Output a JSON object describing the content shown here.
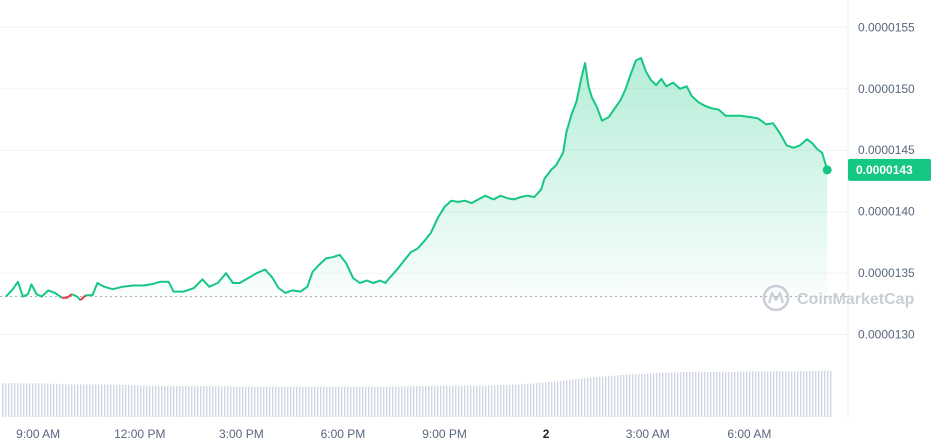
{
  "chart_data": {
    "type": "area",
    "y_ticks": [
      "0.0000155",
      "0.0000150",
      "0.0000145",
      "0.0000140",
      "0.0000135",
      "0.0000130"
    ],
    "y_tick_values": [
      1.55e-05,
      1.5e-05,
      1.45e-05,
      1.4e-05,
      1.35e-05,
      1.3e-05
    ],
    "x_ticks": [
      "9:00 AM",
      "12:00 PM",
      "3:00 PM",
      "6:00 PM",
      "9:00 PM",
      "2",
      "3:00 AM",
      "6:00 AM"
    ],
    "x_tick_hours": [
      9,
      12,
      15,
      18,
      21,
      24,
      27,
      30
    ],
    "bold_tick": "2",
    "current_price_label": "0.0000143",
    "open_price": 1.331e-05,
    "ylim": [
      1.255e-05,
      1.56e-05
    ],
    "xlim_hours": [
      8.05,
      32.5
    ],
    "colors": {
      "up": "#16c784",
      "down": "#ea3943",
      "volume": "#cfd6e4"
    },
    "watermark": "CoinMarketCap",
    "series": [
      {
        "values": [
          [
            8.05,
            1.331e-05
          ],
          [
            8.25,
            1.337e-05
          ],
          [
            8.4,
            1.343e-05
          ],
          [
            8.55,
            1.331e-05
          ],
          [
            8.7,
            1.333e-05
          ],
          [
            8.8,
            1.341e-05
          ],
          [
            8.95,
            1.333e-05
          ],
          [
            9.1,
            1.331e-05
          ],
          [
            9.3,
            1.336e-05
          ],
          [
            9.5,
            1.334e-05
          ],
          [
            9.7,
            1.33e-05
          ],
          [
            9.85,
            1.33e-05
          ],
          [
            10.0,
            1.333e-05
          ],
          [
            10.15,
            1.331e-05
          ],
          [
            10.25,
            1.328e-05
          ],
          [
            10.4,
            1.332e-05
          ],
          [
            10.6,
            1.332e-05
          ],
          [
            10.75,
            1.342e-05
          ],
          [
            10.95,
            1.339e-05
          ],
          [
            11.2,
            1.337e-05
          ],
          [
            11.5,
            1.339e-05
          ],
          [
            11.8,
            1.34e-05
          ],
          [
            12.1,
            1.34e-05
          ],
          [
            12.35,
            1.341e-05
          ],
          [
            12.6,
            1.343e-05
          ],
          [
            12.85,
            1.343e-05
          ],
          [
            13.0,
            1.335e-05
          ],
          [
            13.3,
            1.335e-05
          ],
          [
            13.6,
            1.338e-05
          ],
          [
            13.85,
            1.345e-05
          ],
          [
            14.05,
            1.339e-05
          ],
          [
            14.3,
            1.342e-05
          ],
          [
            14.55,
            1.35e-05
          ],
          [
            14.75,
            1.342e-05
          ],
          [
            14.95,
            1.342e-05
          ],
          [
            15.2,
            1.346e-05
          ],
          [
            15.45,
            1.35e-05
          ],
          [
            15.7,
            1.353e-05
          ],
          [
            15.9,
            1.347e-05
          ],
          [
            16.1,
            1.338e-05
          ],
          [
            16.3,
            1.334e-05
          ],
          [
            16.5,
            1.336e-05
          ],
          [
            16.75,
            1.335e-05
          ],
          [
            16.95,
            1.339e-05
          ],
          [
            17.1,
            1.351e-05
          ],
          [
            17.3,
            1.357e-05
          ],
          [
            17.5,
            1.362e-05
          ],
          [
            17.7,
            1.363e-05
          ],
          [
            17.9,
            1.365e-05
          ],
          [
            18.1,
            1.358e-05
          ],
          [
            18.3,
            1.346e-05
          ],
          [
            18.5,
            1.342e-05
          ],
          [
            18.7,
            1.344e-05
          ],
          [
            18.9,
            1.342e-05
          ],
          [
            19.1,
            1.344e-05
          ],
          [
            19.25,
            1.342e-05
          ],
          [
            19.4,
            1.347e-05
          ],
          [
            19.6,
            1.353e-05
          ],
          [
            19.8,
            1.36e-05
          ],
          [
            20.0,
            1.367e-05
          ],
          [
            20.2,
            1.37e-05
          ],
          [
            20.4,
            1.376e-05
          ],
          [
            20.6,
            1.383e-05
          ],
          [
            20.8,
            1.395e-05
          ],
          [
            21.0,
            1.404e-05
          ],
          [
            21.2,
            1.409e-05
          ],
          [
            21.4,
            1.408e-05
          ],
          [
            21.6,
            1.409e-05
          ],
          [
            21.8,
            1.407e-05
          ],
          [
            22.0,
            1.41e-05
          ],
          [
            22.2,
            1.413e-05
          ],
          [
            22.45,
            1.41e-05
          ],
          [
            22.65,
            1.413e-05
          ],
          [
            22.85,
            1.411e-05
          ],
          [
            23.05,
            1.41e-05
          ],
          [
            23.25,
            1.412e-05
          ],
          [
            23.45,
            1.413e-05
          ],
          [
            23.65,
            1.412e-05
          ],
          [
            23.85,
            1.418e-05
          ],
          [
            23.95,
            1.427e-05
          ],
          [
            24.15,
            1.434e-05
          ],
          [
            24.3,
            1.438e-05
          ],
          [
            24.5,
            1.448e-05
          ],
          [
            24.6,
            1.465e-05
          ],
          [
            24.75,
            1.479e-05
          ],
          [
            24.9,
            1.49e-05
          ],
          [
            25.05,
            1.51e-05
          ],
          [
            25.15,
            1.521e-05
          ],
          [
            25.25,
            1.502e-05
          ],
          [
            25.35,
            1.493e-05
          ],
          [
            25.5,
            1.485e-05
          ],
          [
            25.65,
            1.474e-05
          ],
          [
            25.85,
            1.477e-05
          ],
          [
            26.05,
            1.485e-05
          ],
          [
            26.2,
            1.491e-05
          ],
          [
            26.35,
            1.5e-05
          ],
          [
            26.5,
            1.512e-05
          ],
          [
            26.65,
            1.523e-05
          ],
          [
            26.8,
            1.525e-05
          ],
          [
            26.95,
            1.514e-05
          ],
          [
            27.1,
            1.507e-05
          ],
          [
            27.25,
            1.503e-05
          ],
          [
            27.4,
            1.508e-05
          ],
          [
            27.55,
            1.502e-05
          ],
          [
            27.75,
            1.505e-05
          ],
          [
            27.95,
            1.5e-05
          ],
          [
            28.15,
            1.502e-05
          ],
          [
            28.3,
            1.494e-05
          ],
          [
            28.5,
            1.489e-05
          ],
          [
            28.7,
            1.486e-05
          ],
          [
            28.9,
            1.484e-05
          ],
          [
            29.1,
            1.483e-05
          ],
          [
            29.3,
            1.478e-05
          ],
          [
            29.5,
            1.478e-05
          ],
          [
            29.75,
            1.478e-05
          ],
          [
            30.0,
            1.477e-05
          ],
          [
            30.25,
            1.476e-05
          ],
          [
            30.5,
            1.471e-05
          ],
          [
            30.7,
            1.472e-05
          ],
          [
            30.9,
            1.464e-05
          ],
          [
            31.1,
            1.454e-05
          ],
          [
            31.3,
            1.452e-05
          ],
          [
            31.5,
            1.454e-05
          ],
          [
            31.7,
            1.459e-05
          ],
          [
            31.85,
            1.456e-05
          ],
          [
            32.0,
            1.451e-05
          ],
          [
            32.15,
            1.448e-05
          ],
          [
            32.3,
            1.434e-05
          ]
        ]
      }
    ],
    "volume_level": [
      0.52,
      0.52,
      0.5,
      0.5,
      0.48,
      0.47,
      0.47,
      0.46,
      0.46,
      0.46,
      0.46,
      0.46,
      0.47,
      0.48,
      0.48,
      0.5,
      0.55,
      0.62,
      0.67,
      0.7,
      0.72,
      0.72,
      0.73,
      0.73,
      0.74
    ]
  }
}
